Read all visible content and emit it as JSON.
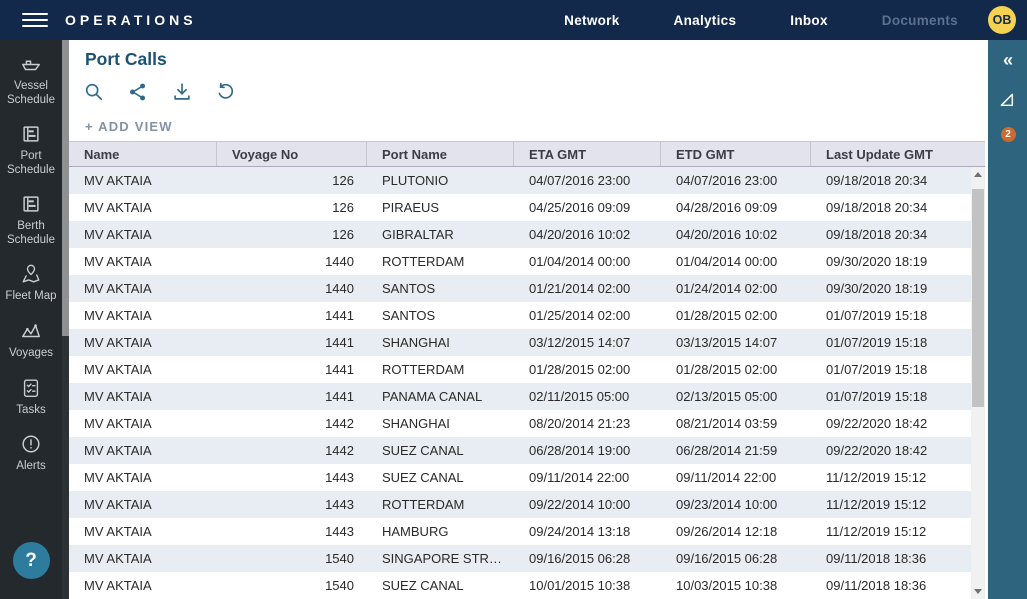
{
  "topbar": {
    "brand": "OPERATIONS",
    "nav": [
      {
        "label": "Network"
      },
      {
        "label": "Analytics"
      },
      {
        "label": "Inbox"
      },
      {
        "label": "Documents"
      }
    ],
    "avatar_initials": "OB"
  },
  "sidebar": {
    "items": [
      {
        "label": "Vessel Schedule",
        "icon": "ship-icon"
      },
      {
        "label": "Port Schedule",
        "icon": "gantt-icon"
      },
      {
        "label": "Berth Schedule",
        "icon": "gantt-icon"
      },
      {
        "label": "Fleet Map",
        "icon": "map-pin-icon"
      },
      {
        "label": "Voyages",
        "icon": "route-icon"
      },
      {
        "label": "Tasks",
        "icon": "checklist-icon"
      },
      {
        "label": "Alerts",
        "icon": "alert-icon"
      }
    ],
    "help_label": "?"
  },
  "main": {
    "title": "Port Calls",
    "toolbar": {
      "icons": [
        "search-icon",
        "share-icon",
        "download-icon",
        "undo-icon"
      ]
    },
    "add_view_label": "+ ADD VIEW",
    "table": {
      "columns": [
        "Name",
        "Voyage No",
        "Port Name",
        "ETA GMT",
        "ETD GMT",
        "Last Update GMT"
      ],
      "rows": [
        {
          "name": "MV AKTAIA",
          "voyage": "126",
          "port": "PLUTONIO",
          "eta": "04/07/2016 23:00",
          "etd": "04/07/2016 23:00",
          "updated": "09/18/2018 20:34"
        },
        {
          "name": "MV AKTAIA",
          "voyage": "126",
          "port": "PIRAEUS",
          "eta": "04/25/2016 09:09",
          "etd": "04/28/2016 09:09",
          "updated": "09/18/2018 20:34"
        },
        {
          "name": "MV AKTAIA",
          "voyage": "126",
          "port": "GIBRALTAR",
          "eta": "04/20/2016 10:02",
          "etd": "04/20/2016 10:02",
          "updated": "09/18/2018 20:34"
        },
        {
          "name": "MV AKTAIA",
          "voyage": "1440",
          "port": "ROTTERDAM",
          "eta": "01/04/2014 00:00",
          "etd": "01/04/2014 00:00",
          "updated": "09/30/2020 18:19"
        },
        {
          "name": "MV AKTAIA",
          "voyage": "1440",
          "port": "SANTOS",
          "eta": "01/21/2014 02:00",
          "etd": "01/24/2014 02:00",
          "updated": "09/30/2020 18:19"
        },
        {
          "name": "MV AKTAIA",
          "voyage": "1441",
          "port": "SANTOS",
          "eta": "01/25/2014 02:00",
          "etd": "01/28/2015 02:00",
          "updated": "01/07/2019 15:18"
        },
        {
          "name": "MV AKTAIA",
          "voyage": "1441",
          "port": "SHANGHAI",
          "eta": "03/12/2015 14:07",
          "etd": "03/13/2015 14:07",
          "updated": "01/07/2019 15:18"
        },
        {
          "name": "MV AKTAIA",
          "voyage": "1441",
          "port": "ROTTERDAM",
          "eta": "01/28/2015 02:00",
          "etd": "01/28/2015 02:00",
          "updated": "01/07/2019 15:18"
        },
        {
          "name": "MV AKTAIA",
          "voyage": "1441",
          "port": "PANAMA CANAL",
          "eta": "02/11/2015 05:00",
          "etd": "02/13/2015 05:00",
          "updated": "01/07/2019 15:18"
        },
        {
          "name": "MV AKTAIA",
          "voyage": "1442",
          "port": "SHANGHAI",
          "eta": "08/20/2014 21:23",
          "etd": "08/21/2014 03:59",
          "updated": "09/22/2020 18:42"
        },
        {
          "name": "MV AKTAIA",
          "voyage": "1442",
          "port": "SUEZ CANAL",
          "eta": "06/28/2014 19:00",
          "etd": "06/28/2014 21:59",
          "updated": "09/22/2020 18:42"
        },
        {
          "name": "MV AKTAIA",
          "voyage": "1443",
          "port": "SUEZ CANAL",
          "eta": "09/11/2014 22:00",
          "etd": "09/11/2014 22:00",
          "updated": "11/12/2019 15:12"
        },
        {
          "name": "MV AKTAIA",
          "voyage": "1443",
          "port": "ROTTERDAM",
          "eta": "09/22/2014 10:00",
          "etd": "09/23/2014 10:00",
          "updated": "11/12/2019 15:12"
        },
        {
          "name": "MV AKTAIA",
          "voyage": "1443",
          "port": "HAMBURG",
          "eta": "09/24/2014 13:18",
          "etd": "09/26/2014 12:18",
          "updated": "11/12/2019 15:12"
        },
        {
          "name": "MV AKTAIA",
          "voyage": "1540",
          "port": "SINGAPORE STR…",
          "eta": "09/16/2015 06:28",
          "etd": "09/16/2015 06:28",
          "updated": "09/11/2018 18:36"
        },
        {
          "name": "MV AKTAIA",
          "voyage": "1540",
          "port": "SUEZ CANAL",
          "eta": "10/01/2015 10:38",
          "etd": "10/03/2015 10:38",
          "updated": "09/11/2018 18:36"
        }
      ]
    }
  },
  "right_panel": {
    "collapse_label": "«",
    "filter_badge_count": "2"
  },
  "colors": {
    "topbar_bg": "#12294B",
    "sidebar_bg": "#24292D",
    "right_panel_bg": "#2E647E",
    "accent_teal": "#2F6A8C",
    "title_color": "#1B5276",
    "avatar_bg": "#F6D251",
    "badge_orange": "#CE6A2F",
    "row_stripe": "#E7EDF3",
    "header_bg": "#E3E3ED",
    "nav_muted": "#5E7090"
  }
}
